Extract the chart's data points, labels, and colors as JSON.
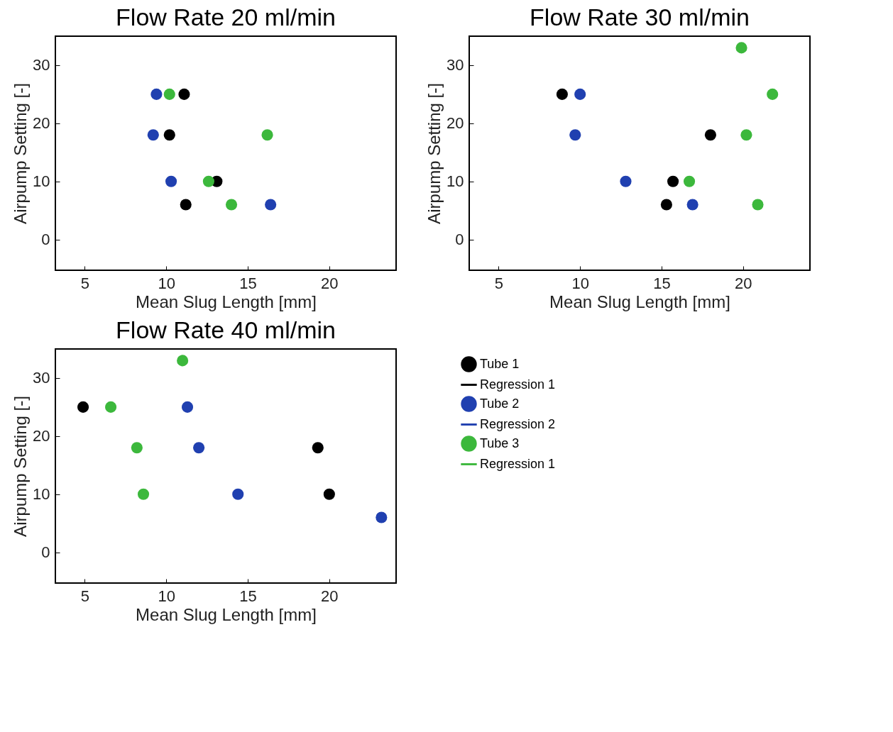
{
  "chart_data": [
    {
      "type": "scatter",
      "title": "Flow Rate 20 ml/min",
      "xlabel": "Mean Slug Length [mm]",
      "ylabel": "Airpump Setting [-]",
      "xlim": [
        3.2,
        24.1
      ],
      "ylim": [
        -5.3,
        35
      ],
      "xticks": [
        5,
        10,
        15,
        20
      ],
      "yticks": [
        0,
        10,
        20,
        30
      ],
      "grid": false,
      "legend": false,
      "marker": "circle",
      "series": [
        {
          "type": "scatter",
          "color": "#000000",
          "x": [
            11.1,
            10.2,
            13.1,
            11.2
          ],
          "values": [
            25,
            18,
            10,
            6
          ]
        },
        {
          "type": "scatter",
          "color": "#2040b0",
          "x": [
            9.4,
            9.2,
            10.3,
            16.4
          ],
          "values": [
            25,
            18,
            10,
            6
          ]
        },
        {
          "type": "scatter",
          "color": "#3cb83c",
          "x": [
            10.2,
            16.2,
            12.6,
            14.0
          ],
          "values": [
            25,
            18,
            10,
            6
          ]
        }
      ]
    },
    {
      "type": "scatter",
      "title": "Flow Rate 30 ml/min",
      "xlabel": "Mean Slug Length [mm]",
      "ylabel": "Airpump Setting [-]",
      "xlim": [
        3.2,
        24.1
      ],
      "ylim": [
        -5.3,
        35
      ],
      "xticks": [
        5,
        10,
        15,
        20
      ],
      "yticks": [
        0,
        10,
        20,
        30
      ],
      "grid": false,
      "legend": false,
      "marker": "circle",
      "series": [
        {
          "type": "scatter",
          "color": "#000000",
          "x": [
            8.9,
            18.0,
            15.7,
            15.3
          ],
          "values": [
            25,
            18,
            10,
            6
          ]
        },
        {
          "type": "scatter",
          "color": "#2040b0",
          "x": [
            10.0,
            9.7,
            12.8,
            16.9
          ],
          "values": [
            25,
            18,
            10,
            6
          ]
        },
        {
          "type": "scatter",
          "color": "#3cb83c",
          "x": [
            19.9,
            21.8,
            20.2,
            16.7,
            20.9
          ],
          "values": [
            33,
            25,
            18,
            10,
            6
          ]
        }
      ]
    },
    {
      "type": "scatter",
      "title": "Flow Rate 40 ml/min",
      "xlabel": "Mean Slug Length [mm]",
      "ylabel": "Airpump Setting [-]",
      "xlim": [
        3.2,
        24.1
      ],
      "ylim": [
        -5.3,
        35
      ],
      "xticks": [
        5,
        10,
        15,
        20
      ],
      "yticks": [
        0,
        10,
        20,
        30
      ],
      "grid": false,
      "legend": "right",
      "marker": "circle",
      "series": [
        {
          "type": "scatter",
          "name": "Tube 1",
          "color": "#000000",
          "x": [
            4.9,
            19.3,
            20.0
          ],
          "values": [
            25,
            18,
            10
          ]
        },
        {
          "type": "line",
          "name": "Regression 1",
          "color": "#000000"
        },
        {
          "type": "scatter",
          "name": "Tube 2",
          "color": "#2040b0",
          "x": [
            11.3,
            12.0,
            14.4,
            23.2
          ],
          "values": [
            25,
            18,
            10,
            6
          ]
        },
        {
          "type": "line",
          "name": "Regression 2",
          "color": "#2040b0"
        },
        {
          "type": "scatter",
          "name": "Tube 3",
          "color": "#3cb83c",
          "x": [
            11.0,
            6.6,
            8.2,
            8.6
          ],
          "values": [
            33,
            25,
            18,
            10
          ]
        },
        {
          "type": "line",
          "name": "Regression 1",
          "color": "#3cb83c"
        }
      ]
    }
  ]
}
